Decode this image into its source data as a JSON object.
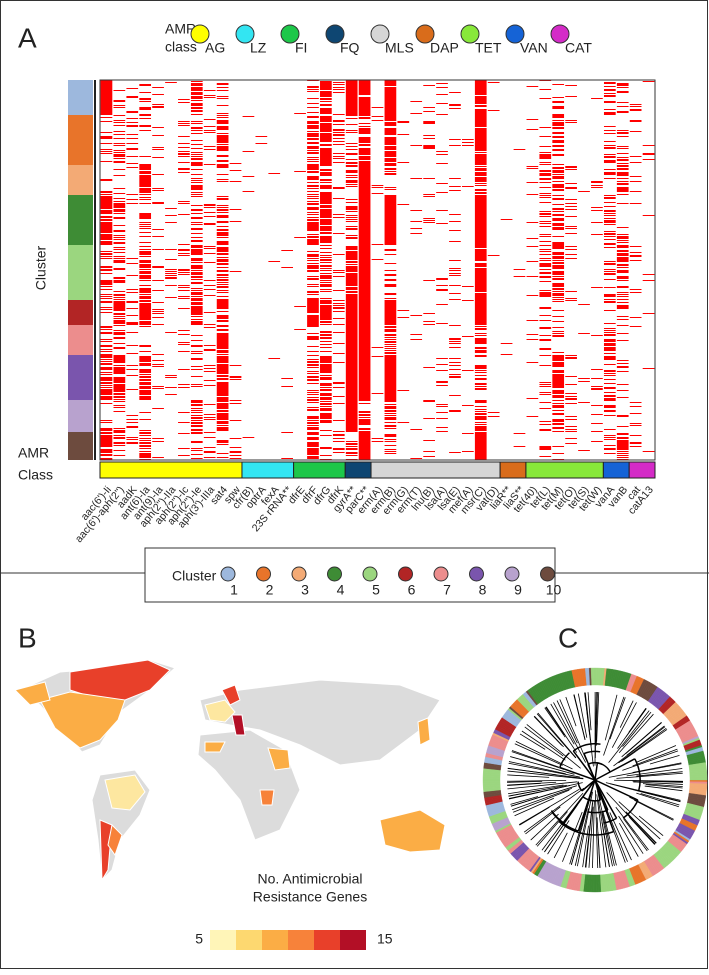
{
  "panel_a": {
    "label": "A",
    "legend": {
      "title": [
        "AMR",
        "class"
      ],
      "classes": [
        {
          "name": "AG",
          "color": "#ffff00"
        },
        {
          "name": "LZ",
          "color": "#33e5f2"
        },
        {
          "name": "FI",
          "color": "#1dc749"
        },
        {
          "name": "FQ",
          "color": "#0e4672"
        },
        {
          "name": "MLS",
          "color": "#d6d6d6"
        },
        {
          "name": "DAP",
          "color": "#d96c1b"
        },
        {
          "name": "TET",
          "color": "#88e83a"
        },
        {
          "name": "VAN",
          "color": "#1563d6"
        },
        {
          "name": "CAT",
          "color": "#d42bc7"
        }
      ]
    },
    "y_label": "Cluster",
    "class_label": [
      "AMR",
      "Class"
    ],
    "cluster_sizes": [
      35,
      50,
      30,
      50,
      55,
      25,
      30,
      45,
      32,
      28
    ],
    "genes": [
      {
        "name": "aac(6')-Ii",
        "class": 0,
        "prevalence": 70
      },
      {
        "name": "aac(6')-aph(2'')",
        "class": 0,
        "prevalence": 45
      },
      {
        "name": "aadK",
        "class": 0,
        "prevalence": 15
      },
      {
        "name": "ant(6)-Ia",
        "class": 0,
        "prevalence": 55
      },
      {
        "name": "ant(9)-Ia",
        "class": 0,
        "prevalence": 10
      },
      {
        "name": "aph(2'')-IIa",
        "class": 0,
        "prevalence": 5
      },
      {
        "name": "aph(2'')-Ic",
        "class": 0,
        "prevalence": 15
      },
      {
        "name": "aph(2'')-Ie",
        "class": 0,
        "prevalence": 40
      },
      {
        "name": "aph(3')-IIIa",
        "class": 0,
        "prevalence": 10
      },
      {
        "name": "sat4",
        "class": 0,
        "prevalence": 55
      },
      {
        "name": "spw",
        "class": 0,
        "prevalence": 8
      },
      {
        "name": "cfr(B)",
        "class": 1,
        "prevalence": 1
      },
      {
        "name": "optrA",
        "class": 1,
        "prevalence": 1
      },
      {
        "name": "fexA",
        "class": 1,
        "prevalence": 1
      },
      {
        "name": "23S rRNA**",
        "class": 1,
        "prevalence": 1
      },
      {
        "name": "dfrE",
        "class": 2,
        "prevalence": 2
      },
      {
        "name": "dfrF",
        "class": 2,
        "prevalence": 45
      },
      {
        "name": "dfrG",
        "class": 2,
        "prevalence": 60
      },
      {
        "name": "dfrK",
        "class": 2,
        "prevalence": 15
      },
      {
        "name": "gyrA**",
        "class": 3,
        "prevalence": 95
      },
      {
        "name": "parC**",
        "class": 3,
        "prevalence": 97
      },
      {
        "name": "erm(A)",
        "class": 4,
        "prevalence": 3
      },
      {
        "name": "erm(B)",
        "class": 4,
        "prevalence": 75
      },
      {
        "name": "erm(G)",
        "class": 4,
        "prevalence": 3
      },
      {
        "name": "erm(T)",
        "class": 4,
        "prevalence": 3
      },
      {
        "name": "lnu(B)",
        "class": 4,
        "prevalence": 10
      },
      {
        "name": "lsa(A)",
        "class": 4,
        "prevalence": 8
      },
      {
        "name": "lsa(E)",
        "class": 4,
        "prevalence": 8
      },
      {
        "name": "mef(A)",
        "class": 4,
        "prevalence": 3
      },
      {
        "name": "msr(C)",
        "class": 4,
        "prevalence": 99
      },
      {
        "name": "vat(D)",
        "class": 4,
        "prevalence": 2
      },
      {
        "name": "liaR**",
        "class": 5,
        "prevalence": 2
      },
      {
        "name": "liaS**",
        "class": 5,
        "prevalence": 2
      },
      {
        "name": "tet(40)",
        "class": 6,
        "prevalence": 5
      },
      {
        "name": "tet(L)",
        "class": 6,
        "prevalence": 25
      },
      {
        "name": "tet(M)",
        "class": 6,
        "prevalence": 55
      },
      {
        "name": "tet(O)",
        "class": 6,
        "prevalence": 10
      },
      {
        "name": "tet(S)",
        "class": 6,
        "prevalence": 3
      },
      {
        "name": "tet(W)",
        "class": 6,
        "prevalence": 3
      },
      {
        "name": "vanA",
        "class": 7,
        "prevalence": 35
      },
      {
        "name": "vanB",
        "class": 7,
        "prevalence": 40
      },
      {
        "name": "cat",
        "class": 8,
        "prevalence": 10
      },
      {
        "name": "catA13",
        "class": 8,
        "prevalence": 3
      }
    ]
  },
  "cluster_legend": {
    "title": "Cluster",
    "items": [
      {
        "label": "1",
        "color": "#9db8dd"
      },
      {
        "label": "2",
        "color": "#e8742a"
      },
      {
        "label": "3",
        "color": "#f3aa75"
      },
      {
        "label": "4",
        "color": "#3e8c35"
      },
      {
        "label": "5",
        "color": "#9bd67f"
      },
      {
        "label": "6",
        "color": "#b22525"
      },
      {
        "label": "7",
        "color": "#ec8d8d"
      },
      {
        "label": "8",
        "color": "#7a55ad"
      },
      {
        "label": "9",
        "color": "#b8a2ce"
      },
      {
        "label": "10",
        "color": "#6d4b3e"
      }
    ]
  },
  "panel_b": {
    "label": "B",
    "legend_title": [
      "No. Antimicrobial",
      "Resistance Genes"
    ],
    "scale_colors": [
      "#fff5b8",
      "#fdd870",
      "#fbad45",
      "#f7823a",
      "#e8402a",
      "#b30f26"
    ],
    "scale_min": "5",
    "scale_max": "15"
  },
  "panel_c": {
    "label": "C"
  }
}
